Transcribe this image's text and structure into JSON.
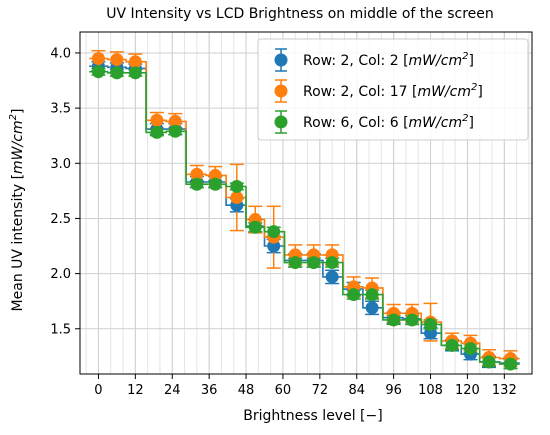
{
  "chart_data": {
    "type": "scatter",
    "title": "UV Intensity vs LCD Brightness on middle of the screen",
    "xlabel": "Brightness level [−]",
    "ylabel": "Mean UV intensity [mW/cm²]",
    "ylabel_parts": {
      "prefix": "Mean UV intensity [",
      "var": "mW/cm",
      "sup": "2",
      "suffix": "]"
    },
    "xlim": [
      -6,
      141
    ],
    "ylim": [
      1.09,
      4.19
    ],
    "xticks": [
      0,
      12,
      24,
      36,
      48,
      60,
      72,
      84,
      96,
      108,
      120,
      132
    ],
    "yticks": [
      1.5,
      2.0,
      2.5,
      3.0,
      3.5,
      4.0
    ],
    "xtick_labels": [
      "0",
      "12",
      "24",
      "36",
      "48",
      "60",
      "72",
      "84",
      "96",
      "108",
      "120",
      "132"
    ],
    "ytick_labels": [
      "1.5",
      "2.0",
      "2.5",
      "3.0",
      "3.5",
      "4.0"
    ],
    "grid": true,
    "minor_x_step": 4,
    "legend_position": "top-right",
    "x": [
      0,
      6,
      12,
      19,
      25,
      32,
      38,
      45,
      51,
      57,
      64,
      70,
      76,
      83,
      89,
      96,
      102,
      108,
      115,
      121,
      127,
      134
    ],
    "series": [
      {
        "name": "Row: 2, Col: 2",
        "legend_prefix": "Row: 2, Col: 2 [",
        "legend_unit": "mW/cm",
        "legend_sup": "2",
        "legend_suffix": "]",
        "color": "#1f77b4",
        "values": [
          3.88,
          3.87,
          3.86,
          3.31,
          3.31,
          2.83,
          2.83,
          2.62,
          2.43,
          2.25,
          2.12,
          2.12,
          1.97,
          1.86,
          1.69,
          1.6,
          1.59,
          1.46,
          1.35,
          1.27,
          1.2,
          1.19
        ],
        "errors": [
          0.04,
          0.04,
          0.04,
          0.05,
          0.05,
          0.05,
          0.05,
          0.06,
          0.06,
          0.06,
          0.06,
          0.06,
          0.06,
          0.06,
          0.06,
          0.05,
          0.05,
          0.05,
          0.05,
          0.05,
          0.05,
          0.05
        ]
      },
      {
        "name": "Row: 2, Col: 17",
        "legend_prefix": "Row: 2, Col: 17 [",
        "legend_unit": "mW/cm",
        "legend_sup": "2",
        "legend_suffix": "]",
        "color": "#ff7f0e",
        "values": [
          3.95,
          3.94,
          3.92,
          3.39,
          3.38,
          2.9,
          2.89,
          2.69,
          2.49,
          2.33,
          2.17,
          2.17,
          2.17,
          1.88,
          1.87,
          1.64,
          1.64,
          1.56,
          1.39,
          1.37,
          1.24,
          1.23
        ],
        "errors": [
          0.07,
          0.07,
          0.07,
          0.07,
          0.07,
          0.08,
          0.08,
          0.3,
          0.12,
          0.28,
          0.09,
          0.09,
          0.09,
          0.09,
          0.09,
          0.08,
          0.08,
          0.17,
          0.07,
          0.07,
          0.07,
          0.07
        ]
      },
      {
        "name": "Row: 6, Col: 6",
        "legend_prefix": "Row: 6, Col: 6 [",
        "legend_unit": "mW/cm",
        "legend_sup": "2",
        "legend_suffix": "]",
        "color": "#2ca02c",
        "values": [
          3.83,
          3.82,
          3.82,
          3.28,
          3.29,
          2.81,
          2.81,
          2.79,
          2.42,
          2.38,
          2.1,
          2.1,
          2.1,
          1.81,
          1.81,
          1.58,
          1.58,
          1.54,
          1.35,
          1.32,
          1.2,
          1.18
        ],
        "errors": [
          0.03,
          0.03,
          0.03,
          0.03,
          0.03,
          0.03,
          0.03,
          0.03,
          0.04,
          0.04,
          0.04,
          0.04,
          0.04,
          0.04,
          0.04,
          0.04,
          0.04,
          0.04,
          0.04,
          0.04,
          0.04,
          0.04
        ]
      }
    ]
  }
}
